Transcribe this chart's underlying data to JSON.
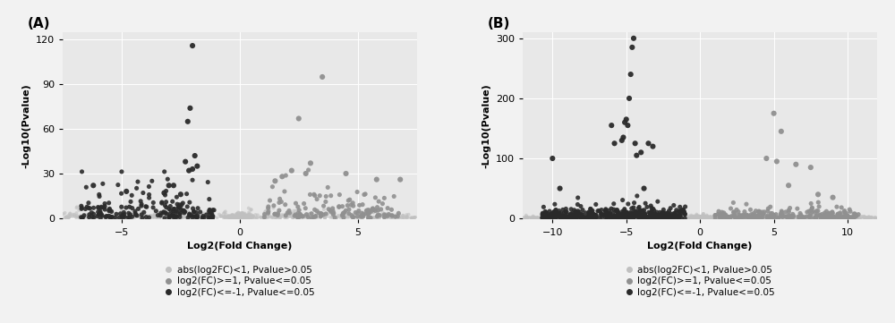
{
  "panel_A": {
    "label": "(A)",
    "xlabel": "Log2(Fold Change)",
    "ylabel": "-Log10(Pvalue)",
    "xlim": [
      -7.5,
      7.5
    ],
    "ylim": [
      -1,
      125
    ],
    "xticks": [
      -5,
      0,
      5
    ],
    "yticks": [
      0,
      30,
      60,
      90,
      120
    ],
    "nonsig_color": "#C0C0C0",
    "up_color": "#909090",
    "down_color": "#2A2A2A",
    "seed_ns": 10,
    "seed_up": 20,
    "seed_down": 30,
    "n_nonsig": 600,
    "n_up": 150,
    "n_down": 200,
    "down_points_x": [
      -2.0,
      -2.1,
      -2.2,
      -1.9,
      -2.3,
      -1.8,
      -2.0,
      -2.15,
      -3.0,
      -2.8,
      -3.2,
      -2.5,
      -6.2,
      -4.8
    ],
    "down_points_y": [
      116,
      74,
      65,
      42,
      38,
      35,
      33,
      32,
      22,
      22,
      17,
      16,
      22,
      18
    ],
    "up_points_x": [
      3.5,
      2.5,
      3.0,
      5.8,
      2.2,
      2.8,
      1.8,
      1.5,
      4.5,
      6.8
    ],
    "up_points_y": [
      95,
      67,
      37,
      26,
      32,
      30,
      28,
      25,
      30,
      26
    ]
  },
  "panel_B": {
    "label": "(B)",
    "xlabel": "Log2(Fold Change)",
    "ylabel": "-Log10(Pvalue)",
    "xlim": [
      -12,
      12
    ],
    "ylim": [
      -2,
      310
    ],
    "xticks": [
      -10,
      -5,
      0,
      5,
      10
    ],
    "yticks": [
      0,
      100,
      200,
      300
    ],
    "nonsig_color": "#C0C0C0",
    "up_color": "#909090",
    "down_color": "#2A2A2A",
    "seed_ns": 11,
    "seed_up": 21,
    "seed_down": 31,
    "n_nonsig": 1000,
    "n_up": 250,
    "n_down": 450,
    "down_points_x": [
      -4.5,
      -4.6,
      -4.7,
      -4.8,
      -5.0,
      -5.1,
      -4.9,
      -5.2,
      -5.3,
      -4.4,
      -6.0,
      -5.8,
      -3.5,
      -3.2,
      -4.0,
      -4.3,
      -9.5,
      -10.0,
      -3.8
    ],
    "down_points_y": [
      300,
      285,
      240,
      200,
      165,
      160,
      155,
      135,
      130,
      125,
      155,
      125,
      125,
      120,
      110,
      105,
      50,
      100,
      50
    ],
    "up_points_x": [
      5.0,
      5.5,
      6.5,
      7.5,
      4.5,
      5.2,
      6.0,
      8.0,
      9.0
    ],
    "up_points_y": [
      175,
      145,
      90,
      85,
      100,
      95,
      55,
      40,
      35
    ]
  },
  "legend_labels": [
    "abs(log2FC)<1, Pvalue>0.05",
    "log2(FC)>=1, Pvalue<=0.05",
    "log2(FC)<=-1, Pvalue<=0.05"
  ],
  "legend_colors": [
    "#C0C0C0",
    "#909090",
    "#2A2A2A"
  ],
  "bg_color": "#E8E8E8",
  "grid_color": "#FFFFFF",
  "fig_bg": "#F2F2F2",
  "marker_size": 15,
  "alpha_ns": 0.6,
  "alpha_sig": 0.9,
  "label_fontsize": 8,
  "tick_fontsize": 8,
  "panel_label_fontsize": 11,
  "legend_fontsize": 7.5
}
